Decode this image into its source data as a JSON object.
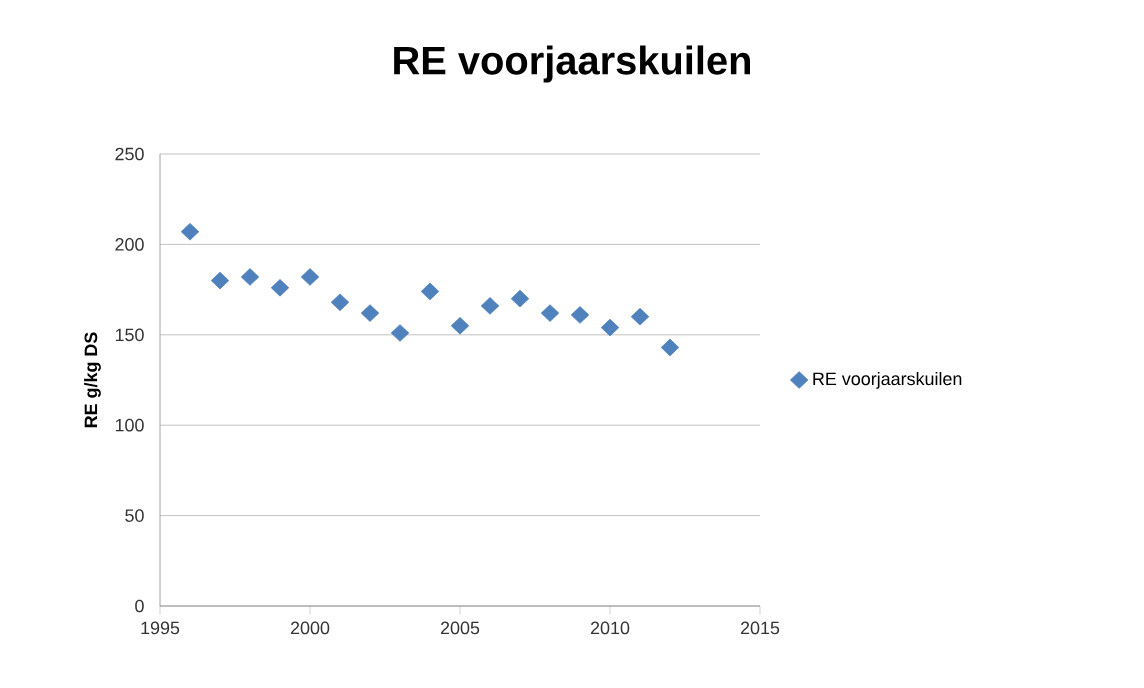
{
  "chart_data": {
    "type": "scatter",
    "title": "RE voorjaarskuilen",
    "ylabel": "RE g/kg DS",
    "x": [
      1996,
      1997,
      1998,
      1999,
      2000,
      2001,
      2002,
      2003,
      2004,
      2005,
      2006,
      2007,
      2008,
      2009,
      2010,
      2011,
      2012
    ],
    "series": [
      {
        "name": "RE voorjaarskuilen",
        "color": "#4f81bd",
        "values": [
          207,
          180,
          182,
          176,
          182,
          168,
          162,
          151,
          174,
          155,
          166,
          170,
          162,
          161,
          154,
          160,
          143
        ]
      }
    ],
    "xlim": [
      1995,
      2015
    ],
    "xticks": [
      1995,
      2000,
      2005,
      2010,
      2015
    ],
    "ylim": [
      0,
      250
    ],
    "yticks": [
      0,
      50,
      100,
      150,
      200,
      250
    ],
    "grid": "y",
    "legend": "right",
    "marker": "diamond"
  }
}
